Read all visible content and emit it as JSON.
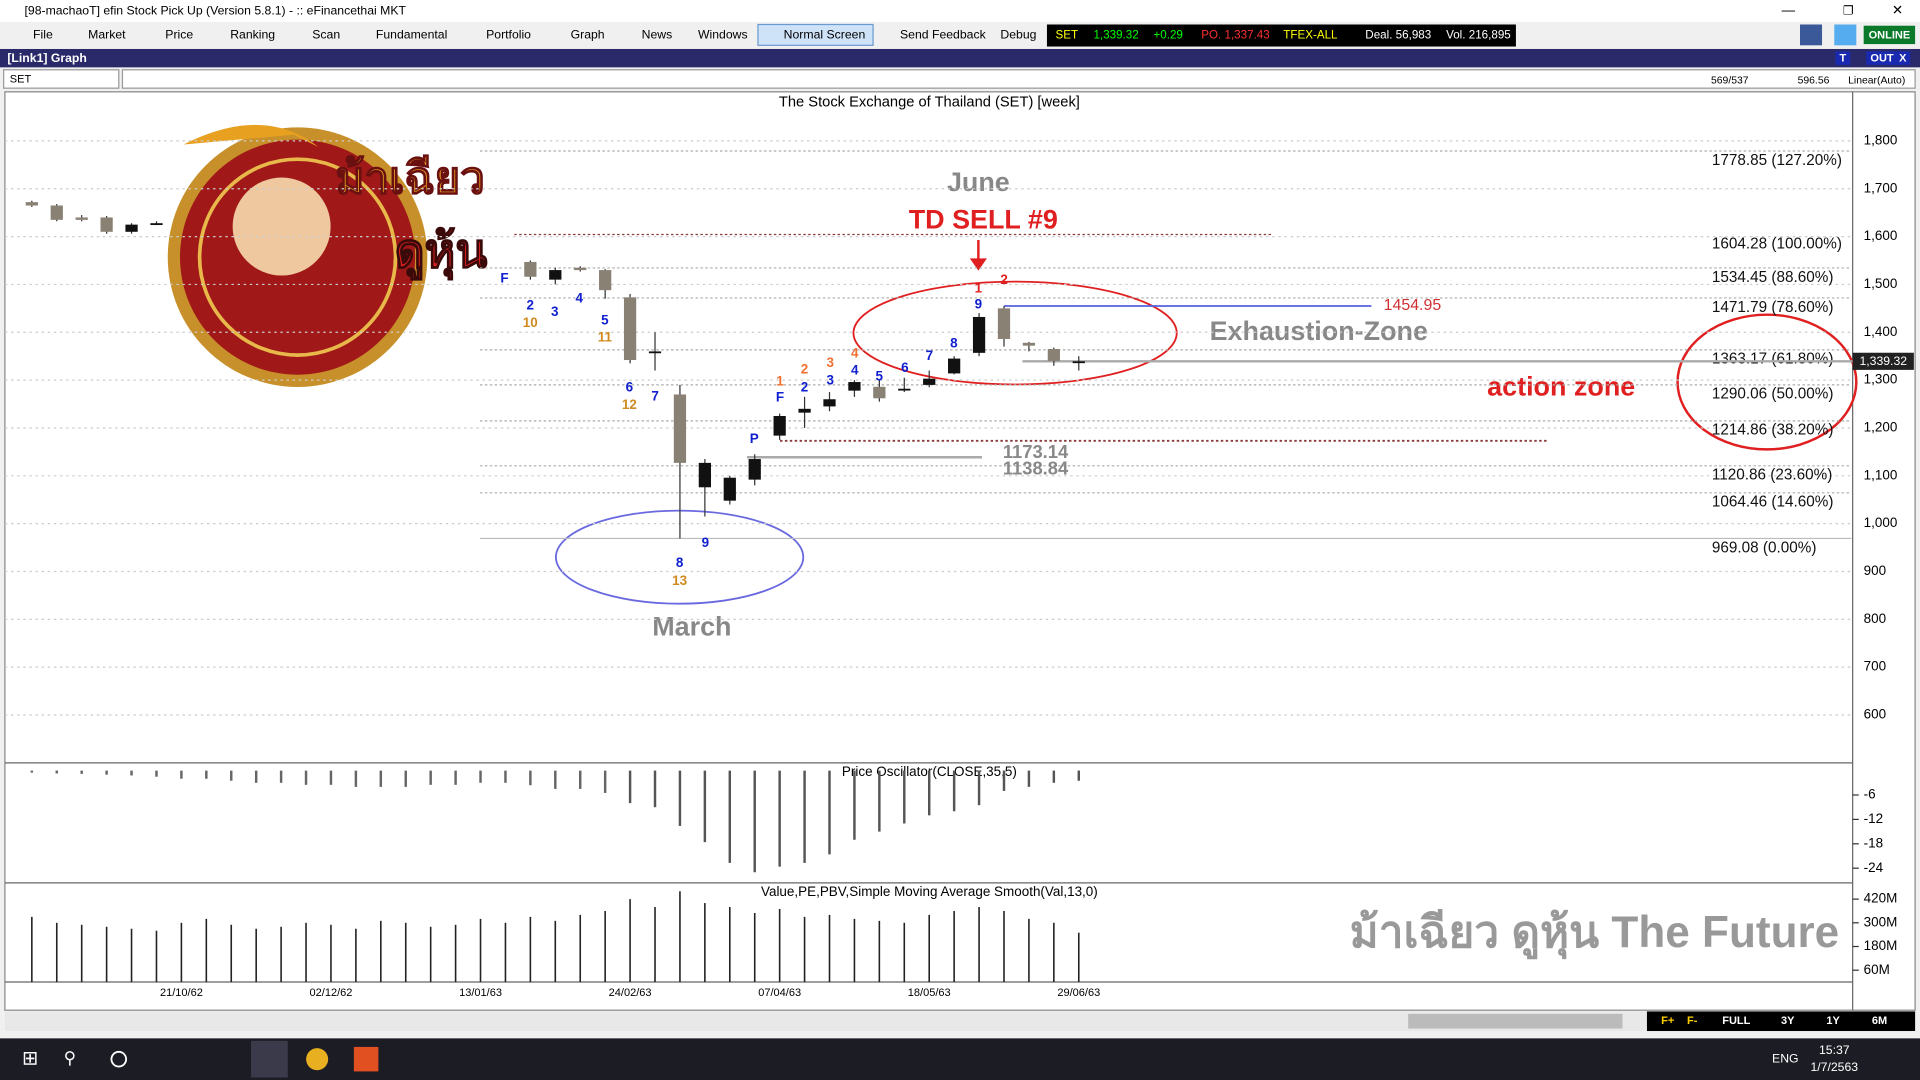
{
  "window": {
    "title": "[98-machaoT] efin Stock Pick Up (Version 5.8.1) - :: eFinancethai MKT"
  },
  "menu": [
    "File",
    "Market",
    "Price",
    "Ranking",
    "Scan",
    "Fundamental",
    "Portfolio",
    "Graph",
    "News",
    "Windows",
    "Normal Screen",
    "Send Feedback",
    "Debug"
  ],
  "ticker": [
    {
      "text": "SET",
      "color": "#ffff00"
    },
    {
      "text": "1,339.32",
      "color": "#00ff00"
    },
    {
      "text": "+0.29",
      "color": "#00ff00"
    },
    {
      "text": "PO. 1,337.43",
      "color": "#ff3030"
    },
    {
      "text": "TFEX-ALL",
      "color": "#ffff00"
    },
    {
      "text": "Deal. 56,983",
      "color": "#ffffff"
    },
    {
      "text": "Vol. 216,895",
      "color": "#ffffff"
    }
  ],
  "status": "ONLINE",
  "panel": {
    "title": "[Link1] Graph",
    "buttons": [
      "T",
      "OUT",
      "X"
    ],
    "symbol": "SET",
    "info": [
      "569/537",
      "596.56",
      "Linear(Auto)"
    ]
  },
  "chart_data": {
    "type": "candlestick",
    "title": "The Stock Exchange of Thailand (SET) [week]",
    "categories": [
      null,
      null,
      null,
      null,
      null,
      null,
      "21/10/62",
      null,
      null,
      null,
      null,
      null,
      "02/12/62",
      null,
      null,
      null,
      null,
      null,
      "13/01/63",
      null,
      null,
      null,
      null,
      null,
      "24/02/63",
      null,
      null,
      null,
      null,
      null,
      "07/04/63",
      null,
      null,
      null,
      null,
      null,
      "18/05/63",
      null,
      null,
      null,
      null,
      null,
      "29/06/63"
    ],
    "open": [
      1672,
      1665,
      1640,
      1640,
      1610,
      1628,
      null,
      null,
      null,
      null,
      null,
      null,
      null,
      null,
      null,
      null,
      null,
      null,
      null,
      null,
      1547,
      1510,
      1535,
      1530,
      1473,
      1360,
      1270,
      1076,
      1048,
      1092,
      1184,
      1232,
      1245,
      1278,
      1286,
      1280,
      1290,
      1314,
      1357,
      1450,
      1378,
      1365,
      1336
    ],
    "high": [
      1675,
      1668,
      1645,
      1643,
      1628,
      1632,
      null,
      null,
      null,
      null,
      null,
      null,
      null,
      null,
      null,
      null,
      null,
      null,
      null,
      null,
      1550,
      1535,
      1538,
      1532,
      1480,
      1400,
      1290,
      1135,
      1100,
      1145,
      1230,
      1265,
      1275,
      1300,
      1300,
      1305,
      1320,
      1350,
      1440,
      1455,
      1380,
      1368,
      1350
    ],
    "low": [
      1662,
      1632,
      1632,
      1606,
      1606,
      1624,
      null,
      null,
      null,
      null,
      null,
      null,
      null,
      null,
      null,
      null,
      null,
      null,
      null,
      null,
      1510,
      1500,
      1527,
      1470,
      1335,
      1320,
      969,
      1015,
      1040,
      1080,
      1175,
      1200,
      1235,
      1265,
      1255,
      1275,
      1285,
      1312,
      1350,
      1370,
      1360,
      1330,
      1320
    ],
    "close": [
      1665,
      1635,
      1635,
      1610,
      1625,
      1628,
      null,
      null,
      null,
      null,
      null,
      null,
      null,
      null,
      null,
      null,
      null,
      null,
      null,
      null,
      1516,
      1530,
      1530,
      1488,
      1342,
      1360,
      1127,
      1127,
      1096,
      1135,
      1225,
      1240,
      1260,
      1296,
      1262,
      1282,
      1303,
      1345,
      1432,
      1386,
      1372,
      1340,
      1339.32
    ],
    "up_color": "#111111",
    "down_color": "#8a8175",
    "ylim": [
      500,
      1900
    ],
    "yticks": [
      {
        "value": 1800,
        "label": "1,800"
      },
      {
        "value": 1700,
        "label": "1,700"
      },
      {
        "value": 1600,
        "label": "1,600"
      },
      {
        "value": 1500,
        "label": "1,500"
      },
      {
        "value": 1400,
        "label": "1,400"
      },
      {
        "value": 1300,
        "label": "1,300"
      },
      {
        "value": 1200,
        "label": "1,200"
      },
      {
        "value": 1100,
        "label": "1,100"
      },
      {
        "value": 1000,
        "label": "1,000"
      },
      900,
      800,
      700,
      600
    ],
    "grid": true,
    "last": {
      "value": 1339.32,
      "label": "1,339.32"
    },
    "fib_levels": [
      {
        "value": 1778.85,
        "label": "1778.85 (127.20%)"
      },
      {
        "value": 1604.28,
        "label": "1604.28 (100.00%)"
      },
      {
        "value": 1534.45,
        "label": "1534.45 (88.60%)"
      },
      {
        "value": 1471.79,
        "label": "1471.79 (78.60%)"
      },
      {
        "value": 1363.17,
        "label": "1363.17 (61.80%)"
      },
      {
        "value": 1290.06,
        "label": "1290.06 (50.00%)"
      },
      {
        "value": 1214.86,
        "label": "1214.86 (38.20%)"
      },
      {
        "value": 1120.86,
        "label": "1120.86 (23.60%)"
      },
      {
        "value": 1064.46,
        "label": "1064.46 (14.60%)"
      },
      {
        "value": 969.08,
        "label": "969.08 (0.00%)"
      }
    ],
    "levels": [
      {
        "value": 1454.95,
        "color": "#5560e0"
      },
      {
        "value": 1173.14,
        "color": "#8b3a3a"
      },
      {
        "value": 1138.84,
        "color": "#aaaaaa"
      }
    ],
    "annotations": [
      "June",
      "TD SELL #9",
      "Exhaustion-Zone",
      "action zone",
      "March"
    ],
    "td_labels": [
      {
        "text": "F",
        "color": "#1020d0"
      },
      {
        "text": "2",
        "color": "#1020d0"
      },
      {
        "text": "10",
        "color": "#d08a20"
      },
      {
        "text": "3",
        "color": "#1020d0"
      },
      {
        "text": "4",
        "color": "#1020d0"
      },
      {
        "text": "5",
        "color": "#1020d0"
      },
      {
        "text": "11",
        "color": "#d08a20"
      },
      {
        "text": "6",
        "color": "#1020d0"
      },
      {
        "text": "12",
        "color": "#d08a20"
      },
      {
        "text": "7",
        "color": "#1020d0"
      },
      {
        "text": "8",
        "color": "#1020d0"
      },
      {
        "text": "13",
        "color": "#d08a20"
      },
      {
        "text": "9",
        "color": "#1020d0"
      },
      {
        "text": "P",
        "color": "#1020d0"
      },
      {
        "text": "F",
        "color": "#1020d0"
      },
      {
        "text": "1",
        "color": "#f07030"
      },
      {
        "text": "2",
        "color": "#f07030"
      },
      {
        "text": "2",
        "color": "#1020d0"
      },
      {
        "text": "3",
        "color": "#f07030"
      },
      {
        "text": "3",
        "color": "#1020d0"
      },
      {
        "text": "4",
        "color": "#f07030"
      },
      {
        "text": "4",
        "color": "#1020d0"
      },
      {
        "text": "5",
        "color": "#1020d0"
      },
      {
        "text": "6",
        "color": "#1020d0"
      },
      {
        "text": "7",
        "color": "#1020d0"
      },
      {
        "text": "8",
        "color": "#1020d0"
      },
      {
        "text": "9",
        "color": "#1020d0"
      },
      {
        "text": "1",
        "color": "#e02020"
      },
      {
        "text": "2",
        "color": "#e02020"
      }
    ],
    "oscillator": {
      "title": "Price Oscillator(CLOSE,35,5)",
      "values": [
        -0.5,
        -0.7,
        -0.8,
        -1,
        -1.2,
        -1.5,
        -2,
        -2,
        -2.5,
        -3,
        -3,
        -3.5,
        -3.5,
        -4,
        -4,
        -4,
        -3.5,
        -3.5,
        -3,
        -3,
        -3.6,
        -4.5,
        -4.5,
        -5.5,
        -8,
        -9,
        -13.6,
        -17.6,
        -22.7,
        -25,
        -23.6,
        -22.7,
        -20.6,
        -17,
        -15,
        -13,
        -11,
        -10,
        -8.5,
        -5,
        -4,
        -3,
        -2.5
      ],
      "ylim": [
        -27,
        1
      ],
      "yticks": [
        -6,
        -12,
        -18,
        -24
      ]
    },
    "volume": {
      "title": "Value,PE,PBV,Simple Moving Average Smooth(Val,13,0)",
      "values": [
        330,
        300,
        290,
        280,
        270,
        260,
        300,
        320,
        290,
        270,
        280,
        300,
        290,
        270,
        310,
        300,
        280,
        290,
        320,
        300,
        330,
        310,
        340,
        360,
        420,
        380,
        460,
        400,
        380,
        350,
        370,
        330,
        340,
        320,
        310,
        300,
        340,
        360,
        380,
        360,
        320,
        300,
        250
      ],
      "ylim": [
        0,
        490
      ],
      "yticks": [
        {
          "value": 420,
          "label": "420M"
        },
        {
          "value": 300,
          "label": "300M"
        },
        {
          "value": 180,
          "label": "180M"
        },
        {
          "value": 60,
          "label": "60M"
        }
      ]
    },
    "watermark": "ม้าเฉียว ดูหุ้น The  Future",
    "logo": [
      "ม้าเฉียว",
      "ดูหุ้น"
    ]
  },
  "range_buttons": [
    "F+",
    "F-",
    "FULL",
    "3Y",
    "1Y",
    "6M"
  ],
  "taskbar": {
    "lang": "ENG",
    "time": "15:37",
    "date": "1/7/2563"
  }
}
